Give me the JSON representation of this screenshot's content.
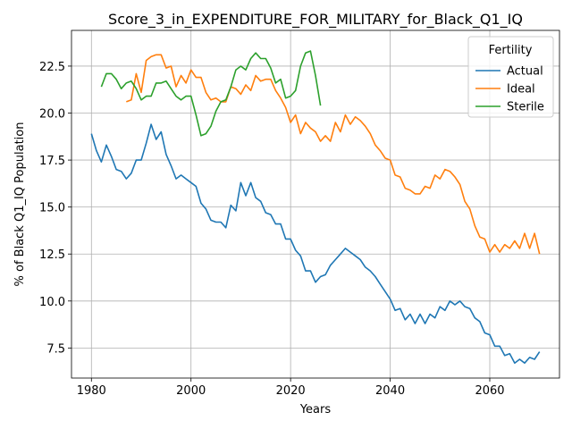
{
  "chart_data": {
    "type": "line",
    "title": "Score_3_in_EXPENDITURE_FOR_MILITARY_for_Black_Q1_IQ",
    "xlabel": "Years",
    "ylabel": "% of Black Q1_IQ Population",
    "xlim": [
      1976,
      2074
    ],
    "ylim": [
      5.9,
      24.4
    ],
    "xticks": [
      1980,
      2000,
      2020,
      2040,
      2060
    ],
    "yticks": [
      7.5,
      10.0,
      12.5,
      15.0,
      17.5,
      20.0,
      22.5
    ],
    "ytick_labels": [
      "7.5",
      "10.0",
      "12.5",
      "15.0",
      "17.5",
      "20.0",
      "22.5"
    ],
    "grid": true,
    "legend": {
      "title": "Fertility",
      "placement": "top-right"
    },
    "series": [
      {
        "name": "Actual",
        "color": "#1f77b4",
        "x": [
          1980,
          1981,
          1982,
          1983,
          1984,
          1985,
          1986,
          1987,
          1988,
          1989,
          1990,
          1991,
          1992,
          1993,
          1994,
          1995,
          1996,
          1997,
          1998,
          1999,
          2000,
          2001,
          2002,
          2003,
          2004,
          2005,
          2006,
          2007,
          2008,
          2009,
          2010,
          2011,
          2012,
          2013,
          2014,
          2015,
          2016,
          2017,
          2018,
          2019,
          2020,
          2021,
          2022,
          2023,
          2024,
          2025,
          2026,
          2027,
          2028,
          2029,
          2030,
          2031,
          2032,
          2033,
          2034,
          2035,
          2036,
          2037,
          2038,
          2039,
          2040,
          2041,
          2042,
          2043,
          2044,
          2045,
          2046,
          2047,
          2048,
          2049,
          2050,
          2051,
          2052,
          2053,
          2054,
          2055,
          2056,
          2057,
          2058,
          2059,
          2060,
          2061,
          2062,
          2063,
          2064,
          2065,
          2066,
          2067,
          2068,
          2069,
          2070
        ],
        "values": [
          18.9,
          18.0,
          17.4,
          18.3,
          17.7,
          17.0,
          16.9,
          16.5,
          16.8,
          17.5,
          17.5,
          18.4,
          19.4,
          18.6,
          19.0,
          17.8,
          17.2,
          16.5,
          16.7,
          16.5,
          16.3,
          16.1,
          15.2,
          14.9,
          14.3,
          14.2,
          14.2,
          13.9,
          15.1,
          14.8,
          16.3,
          15.6,
          16.3,
          15.5,
          15.3,
          14.7,
          14.6,
          14.1,
          14.1,
          13.3,
          13.3,
          12.7,
          12.4,
          11.6,
          11.6,
          11.0,
          11.3,
          11.4,
          11.9,
          12.2,
          12.5,
          12.8,
          12.6,
          12.4,
          12.2,
          11.8,
          11.6,
          11.3,
          10.9,
          10.5,
          10.1,
          9.5,
          9.6,
          9.0,
          9.3,
          8.8,
          9.3,
          8.8,
          9.3,
          9.1,
          9.7,
          9.5,
          10.0,
          9.8,
          10.0,
          9.7,
          9.6,
          9.1,
          8.9,
          8.3,
          8.2,
          7.6,
          7.6,
          7.1,
          7.2,
          6.7,
          6.9,
          6.7,
          7.0,
          6.9,
          7.3
        ]
      },
      {
        "name": "Ideal",
        "color": "#ff7f0e",
        "x": [
          1987,
          1988,
          1989,
          1990,
          1991,
          1992,
          1993,
          1994,
          1995,
          1996,
          1997,
          1998,
          1999,
          2000,
          2001,
          2002,
          2003,
          2004,
          2005,
          2006,
          2007,
          2008,
          2009,
          2010,
          2011,
          2012,
          2013,
          2014,
          2015,
          2016,
          2017,
          2018,
          2019,
          2020,
          2021,
          2022,
          2023,
          2024,
          2025,
          2026,
          2027,
          2028,
          2029,
          2030,
          2031,
          2032,
          2033,
          2034,
          2035,
          2036,
          2037,
          2038,
          2039,
          2040,
          2041,
          2042,
          2043,
          2044,
          2045,
          2046,
          2047,
          2048,
          2049,
          2050,
          2051,
          2052,
          2053,
          2054,
          2055,
          2056,
          2057,
          2058,
          2059,
          2060,
          2061,
          2062,
          2063,
          2064,
          2065,
          2066,
          2067,
          2068,
          2069,
          2070
        ],
        "values": [
          20.6,
          20.7,
          22.1,
          21.1,
          22.8,
          23.0,
          23.1,
          23.1,
          22.4,
          22.5,
          21.4,
          22.0,
          21.6,
          22.3,
          21.9,
          21.9,
          21.1,
          20.7,
          20.8,
          20.6,
          20.6,
          21.4,
          21.3,
          21.0,
          21.5,
          21.2,
          22.0,
          21.7,
          21.8,
          21.8,
          21.2,
          20.8,
          20.3,
          19.5,
          19.9,
          18.9,
          19.5,
          19.2,
          19.0,
          18.5,
          18.8,
          18.5,
          19.5,
          19.0,
          19.9,
          19.4,
          19.8,
          19.6,
          19.3,
          18.9,
          18.3,
          18.0,
          17.6,
          17.5,
          16.7,
          16.6,
          16.0,
          15.9,
          15.7,
          15.7,
          16.1,
          16.0,
          16.7,
          16.5,
          17.0,
          16.9,
          16.6,
          16.2,
          15.3,
          14.9,
          14.0,
          13.4,
          13.3,
          12.6,
          13.0,
          12.6,
          13.0,
          12.8,
          13.2,
          12.8,
          13.6,
          12.8,
          13.6,
          12.5
        ]
      },
      {
        "name": "Sterile",
        "color": "#2ca02c",
        "x": [
          1982,
          1983,
          1984,
          1985,
          1986,
          1987,
          1988,
          1989,
          1990,
          1991,
          1992,
          1993,
          1994,
          1995,
          1996,
          1997,
          1998,
          1999,
          2000,
          2001,
          2002,
          2003,
          2004,
          2005,
          2006,
          2007,
          2008,
          2009,
          2010,
          2011,
          2012,
          2013,
          2014,
          2015,
          2016,
          2017,
          2018,
          2019,
          2020,
          2021,
          2022,
          2023,
          2024,
          2025,
          2026
        ],
        "values": [
          21.4,
          22.1,
          22.1,
          21.8,
          21.3,
          21.6,
          21.7,
          21.3,
          20.7,
          20.9,
          20.9,
          21.6,
          21.6,
          21.7,
          21.3,
          20.9,
          20.7,
          20.9,
          20.9,
          19.9,
          18.8,
          18.9,
          19.3,
          20.1,
          20.6,
          20.7,
          21.4,
          22.3,
          22.5,
          22.3,
          22.9,
          23.2,
          22.9,
          22.9,
          22.4,
          21.6,
          21.8,
          20.8,
          20.9,
          21.2,
          22.5,
          23.2,
          23.3,
          22.0,
          20.4
        ]
      }
    ]
  }
}
